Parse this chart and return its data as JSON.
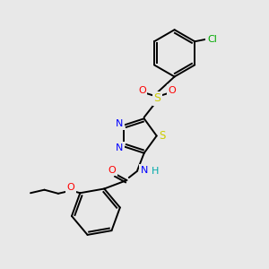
{
  "background_color": "#e8e8e8",
  "bond_color": "#000000",
  "atom_colors": {
    "N": "#0000ff",
    "O": "#ff0000",
    "S": "#cccc00",
    "Cl": "#00aa00",
    "H": "#00aaaa"
  },
  "figsize": [
    3.0,
    3.0
  ],
  "dpi": 100,
  "xlim": [
    0,
    10
  ],
  "ylim": [
    0,
    10
  ]
}
